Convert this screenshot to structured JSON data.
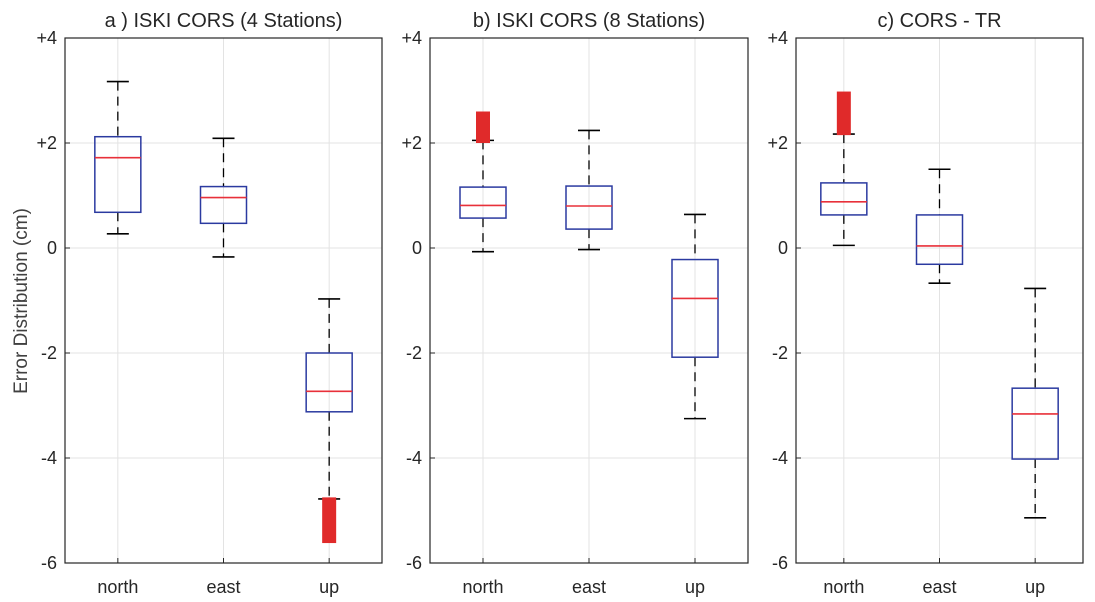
{
  "ylabel": "Error Distribution (cm)",
  "colors": {
    "box": "#2b3aa0",
    "median": "#e8303a",
    "whisker": "#000000",
    "outlier": "#e02a2a",
    "grid": "#e3e3e3",
    "axis": "#262626"
  },
  "chart_data": [
    {
      "type": "boxplot",
      "title": "a ) ISKI CORS (4 Stations)",
      "ylim": [
        -6,
        4
      ],
      "yticks": [
        "-6",
        "-4",
        "-2",
        "0",
        "+2",
        "+4"
      ],
      "categories": [
        "north",
        "east",
        "up"
      ],
      "grid": true,
      "boxes": [
        {
          "category": "north",
          "whisker_low": 0.27,
          "q1": 0.68,
          "median": 1.72,
          "q3": 2.12,
          "whisker_high": 3.17,
          "outlier_range": null
        },
        {
          "category": "east",
          "whisker_low": -0.17,
          "q1": 0.47,
          "median": 0.96,
          "q3": 1.17,
          "whisker_high": 2.09,
          "outlier_range": null
        },
        {
          "category": "up",
          "whisker_low": -4.78,
          "q1": -3.12,
          "median": -2.73,
          "q3": -2.0,
          "whisker_high": -0.97,
          "outlier_range": [
            -5.62,
            -4.75
          ]
        }
      ]
    },
    {
      "type": "boxplot",
      "title": "b) ISKI CORS (8 Stations)",
      "ylim": [
        -6,
        4
      ],
      "yticks": [
        "-6",
        "-4",
        "-2",
        "0",
        "+2",
        "+4"
      ],
      "categories": [
        "north",
        "east",
        "up"
      ],
      "grid": true,
      "boxes": [
        {
          "category": "north",
          "whisker_low": -0.07,
          "q1": 0.57,
          "median": 0.81,
          "q3": 1.16,
          "whisker_high": 2.05,
          "outlier_range": [
            2.0,
            2.6
          ]
        },
        {
          "category": "east",
          "whisker_low": -0.03,
          "q1": 0.36,
          "median": 0.8,
          "q3": 1.18,
          "whisker_high": 2.24,
          "outlier_range": null
        },
        {
          "category": "up",
          "whisker_low": -3.25,
          "q1": -2.08,
          "median": -0.96,
          "q3": -0.22,
          "whisker_high": 0.64,
          "outlier_range": null
        }
      ]
    },
    {
      "type": "boxplot",
      "title": "c) CORS - TR",
      "ylim": [
        -6,
        4
      ],
      "yticks": [
        "-6",
        "-4",
        "-2",
        "0",
        "+2",
        "+4"
      ],
      "categories": [
        "north",
        "east",
        "up"
      ],
      "grid": true,
      "boxes": [
        {
          "category": "north",
          "whisker_low": 0.05,
          "q1": 0.63,
          "median": 0.88,
          "q3": 1.24,
          "whisker_high": 2.17,
          "outlier_range": [
            2.15,
            2.98
          ]
        },
        {
          "category": "east",
          "whisker_low": -0.67,
          "q1": -0.31,
          "median": 0.04,
          "q3": 0.63,
          "whisker_high": 1.5,
          "outlier_range": null
        },
        {
          "category": "up",
          "whisker_low": -5.14,
          "q1": -4.02,
          "median": -3.16,
          "q3": -2.67,
          "whisker_high": -0.77,
          "outlier_range": null
        }
      ]
    }
  ]
}
